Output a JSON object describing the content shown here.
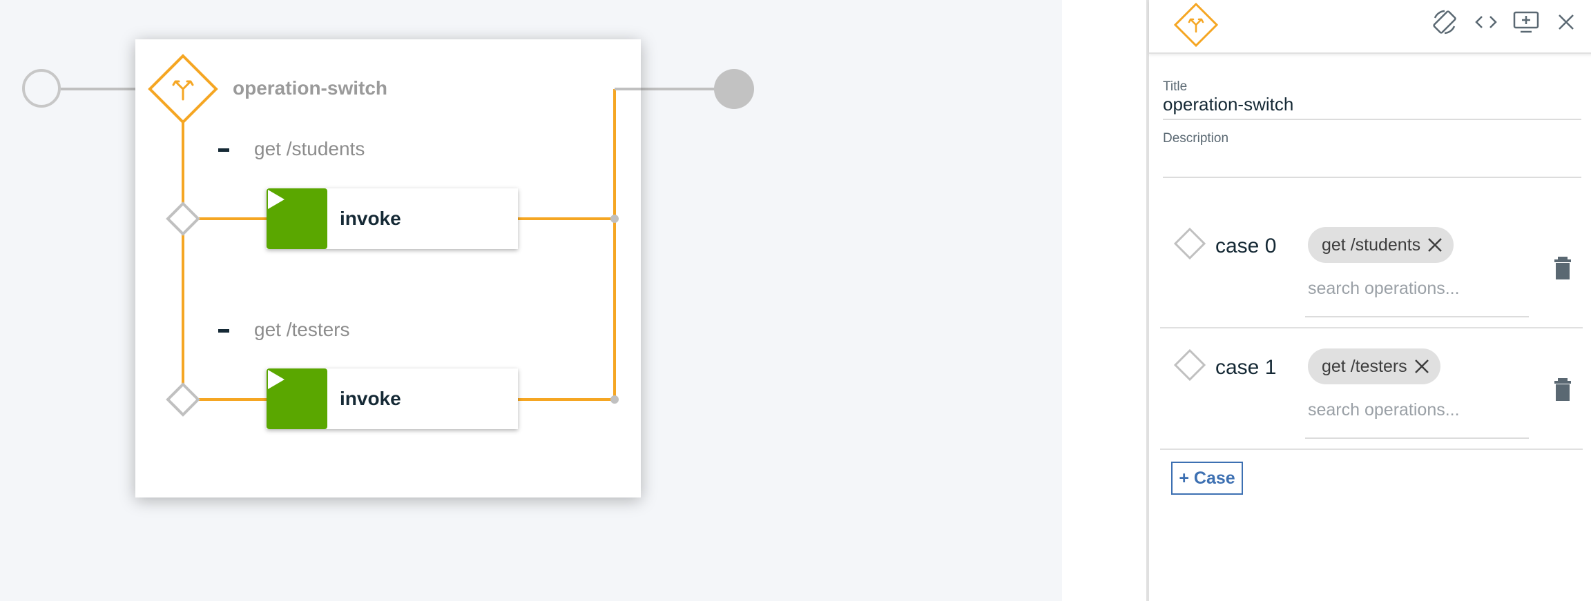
{
  "canvas": {
    "node_title": "operation-switch",
    "cases": [
      {
        "label": "get /students",
        "action_label": "invoke"
      },
      {
        "label": "get /testers",
        "action_label": "invoke"
      }
    ]
  },
  "panel": {
    "header_icon": "switch-icon",
    "toolbar": [
      {
        "name": "rotate-icon"
      },
      {
        "name": "code-icon"
      },
      {
        "name": "add-screen-icon"
      },
      {
        "name": "close-icon"
      }
    ],
    "title_label": "Title",
    "title_value": "operation-switch",
    "description_label": "Description",
    "description_value": "",
    "cases": [
      {
        "name": "case 0",
        "tag": "get /students",
        "search_placeholder": "search operations..."
      },
      {
        "name": "case 1",
        "tag": "get /testers",
        "search_placeholder": "search operations..."
      }
    ],
    "add_case_label": "+ Case"
  },
  "colors": {
    "accent_orange": "#f5a623",
    "invoke_green": "#5aa700",
    "link_blue": "#3d70b2"
  }
}
